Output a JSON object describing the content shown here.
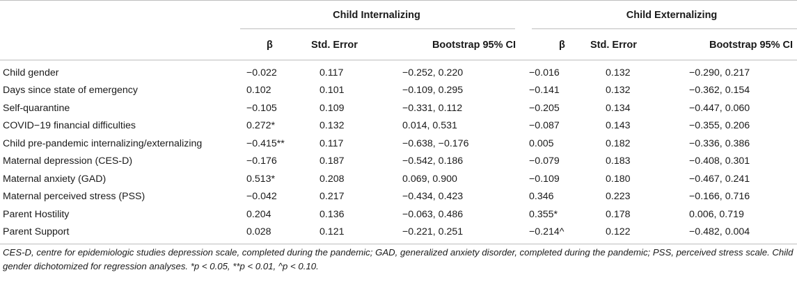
{
  "table": {
    "group_headers": [
      "Child Internalizing",
      "Child Externalizing"
    ],
    "column_headers": [
      "β",
      "Std. Error",
      "Bootstrap 95% CI",
      "β",
      "Std. Error",
      "Bootstrap 95% CI"
    ],
    "rows": [
      {
        "label": "Child gender",
        "b1": "−0.022",
        "se1": "0.117",
        "ci1": "−0.252, 0.220",
        "b2": "−0.016",
        "se2": "0.132",
        "ci2": "−0.290, 0.217"
      },
      {
        "label": "Days since state of emergency",
        "b1": "0.102",
        "se1": "0.101",
        "ci1": "−0.109, 0.295",
        "b2": "−0.141",
        "se2": "0.132",
        "ci2": "−0.362, 0.154"
      },
      {
        "label": "Self-quarantine",
        "b1": "−0.105",
        "se1": "0.109",
        "ci1": "−0.331, 0.112",
        "b2": "−0.205",
        "se2": "0.134",
        "ci2": "−0.447, 0.060"
      },
      {
        "label": "COVID−19 financial difficulties",
        "b1": "0.272*",
        "se1": "0.132",
        "ci1": "0.014, 0.531",
        "b2": "−0.087",
        "se2": "0.143",
        "ci2": "−0.355, 0.206"
      },
      {
        "label": "Child pre-pandemic internalizing/externalizing",
        "b1": "−0.415**",
        "se1": "0.117",
        "ci1": "−0.638, −0.176",
        "b2": "0.005",
        "se2": "0.182",
        "ci2": "−0.336, 0.386"
      },
      {
        "label": "Maternal depression (CES-D)",
        "b1": "−0.176",
        "se1": "0.187",
        "ci1": "−0.542, 0.186",
        "b2": "−0.079",
        "se2": "0.183",
        "ci2": "−0.408, 0.301"
      },
      {
        "label": "Maternal anxiety (GAD)",
        "b1": "0.513*",
        "se1": "0.208",
        "ci1": "0.069, 0.900",
        "b2": "−0.109",
        "se2": "0.180",
        "ci2": "−0.467, 0.241"
      },
      {
        "label": "Maternal perceived stress (PSS)",
        "b1": "−0.042",
        "se1": "0.217",
        "ci1": "−0.434, 0.423",
        "b2": "0.346",
        "se2": "0.223",
        "ci2": "−0.166, 0.716"
      },
      {
        "label": "Parent Hostility",
        "b1": "0.204",
        "se1": "0.136",
        "ci1": "−0.063, 0.486",
        "b2": "0.355*",
        "se2": "0.178",
        "ci2": "0.006, 0.719"
      },
      {
        "label": "Parent Support",
        "b1": "0.028",
        "se1": "0.121",
        "ci1": "−0.221, 0.251",
        "b2": "−0.214^",
        "se2": "0.122",
        "ci2": "−0.482, 0.004"
      }
    ]
  },
  "footnote": "CES-D, centre for epidemiologic studies depression scale, completed during the pandemic; GAD, generalized anxiety disorder, completed during the pandemic; PSS, perceived stress scale. Child gender dichotomized for regression analyses. *p < 0.05, **p < 0.01, ^p < 0.10."
}
